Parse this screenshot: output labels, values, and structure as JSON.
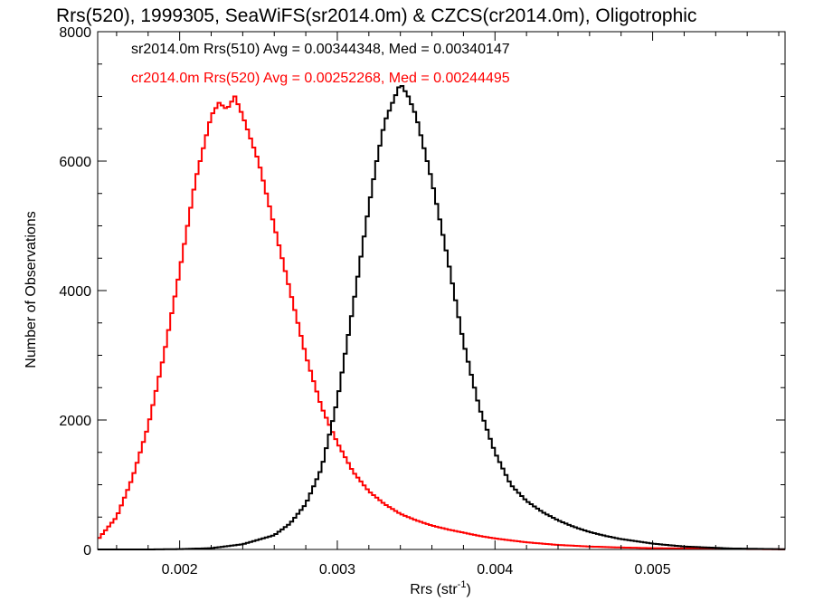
{
  "chart_data": {
    "type": "line",
    "title": "Rrs(520), 1999305, SeaWiFS(sr2014.0m) & CZCS(cr2014.0m), Oligotrophic",
    "xlabel": "Rrs (str",
    "xlabel_sup": "-1",
    "xlabel_close": ")",
    "ylabel": "Number of Observations",
    "xlim": [
      0.00148,
      0.00584
    ],
    "ylim": [
      0,
      8000
    ],
    "x_ticks": [
      {
        "value": 0.002,
        "label": "0.002"
      },
      {
        "value": 0.003,
        "label": "0.003"
      },
      {
        "value": 0.004,
        "label": "0.004"
      },
      {
        "value": 0.005,
        "label": "0.005"
      }
    ],
    "x_minor_step": 0.0002,
    "y_ticks": [
      {
        "value": 0,
        "label": "0"
      },
      {
        "value": 2000,
        "label": "2000"
      },
      {
        "value": 4000,
        "label": "4000"
      },
      {
        "value": 6000,
        "label": "6000"
      },
      {
        "value": 8000,
        "label": "8000"
      }
    ],
    "y_minor_step": 500,
    "grid": false,
    "annotations": [
      {
        "text": "sr2014.0m Rrs(510) Avg = 0.00344348, Med = 0.00340147",
        "color": "#000000"
      },
      {
        "text": "cr2014.0m Rrs(520) Avg = 0.00252268, Med = 0.00244495",
        "color": "#ff0000"
      }
    ],
    "series": [
      {
        "color": "#ff0000",
        "style": "step",
        "x": [
          0.00148,
          0.0016,
          0.0017,
          0.0018,
          0.0019,
          0.002,
          0.0021,
          0.0022,
          0.00225,
          0.0023,
          0.00235,
          0.0024,
          0.0025,
          0.0026,
          0.0027,
          0.0028,
          0.0029,
          0.003,
          0.0031,
          0.0032,
          0.0033,
          0.0034,
          0.0035,
          0.0036,
          0.0037,
          0.0038,
          0.0039,
          0.004,
          0.0042,
          0.0044,
          0.0046,
          0.0048,
          0.005,
          0.0055,
          0.00584
        ],
        "y": [
          150,
          500,
          1100,
          1900,
          3000,
          4300,
          5700,
          6700,
          6900,
          6800,
          7000,
          6700,
          6000,
          5000,
          4000,
          3000,
          2200,
          1650,
          1200,
          900,
          700,
          550,
          450,
          370,
          310,
          260,
          210,
          170,
          110,
          70,
          45,
          30,
          20,
          8,
          2
        ]
      },
      {
        "color": "#000000",
        "style": "step",
        "x": [
          0.00148,
          0.0018,
          0.002,
          0.0022,
          0.0024,
          0.0026,
          0.0027,
          0.0028,
          0.0029,
          0.003,
          0.0031,
          0.0032,
          0.00325,
          0.0033,
          0.00335,
          0.0034,
          0.00345,
          0.0035,
          0.0036,
          0.0037,
          0.0038,
          0.0039,
          0.004,
          0.0041,
          0.0042,
          0.0043,
          0.0044,
          0.0045,
          0.0046,
          0.0047,
          0.0048,
          0.005,
          0.0052,
          0.0055,
          0.00584
        ],
        "y": [
          0,
          0,
          5,
          20,
          80,
          220,
          400,
          700,
          1250,
          2300,
          3750,
          5300,
          6000,
          6600,
          6900,
          7200,
          7000,
          6700,
          5700,
          4500,
          3200,
          2200,
          1500,
          1000,
          750,
          580,
          450,
          350,
          270,
          210,
          160,
          90,
          45,
          15,
          3
        ]
      }
    ]
  }
}
